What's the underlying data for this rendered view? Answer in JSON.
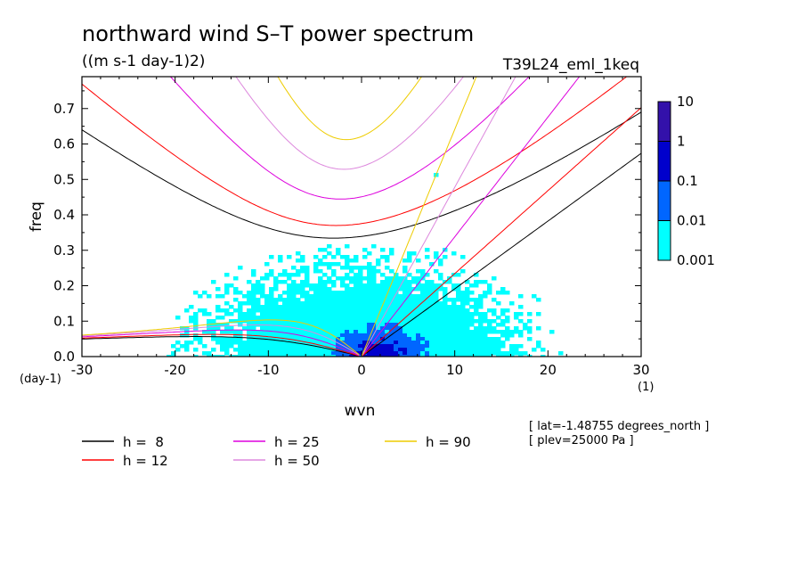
{
  "chart_data": {
    "type": "heatmap",
    "title": "northward wind S–T power spectrum",
    "subtitle": "((m s-1 day-1)2)",
    "experiment": "T39L24_eml_1keq",
    "xlabel": "wvn",
    "ylabel": "freq",
    "x_unit": "(1)",
    "y_unit": "(day-1)",
    "xlim": [
      -30,
      30
    ],
    "ylim": [
      0,
      0.79
    ],
    "x_ticks": [
      "-30",
      "-20",
      "-10",
      "0",
      "10",
      "20",
      "30"
    ],
    "x_tick_values": [
      -30,
      -20,
      -10,
      0,
      10,
      20,
      30
    ],
    "y_ticks": [
      "0.0",
      "0.1",
      "0.2",
      "0.3",
      "0.4",
      "0.5",
      "0.6",
      "0.7"
    ],
    "y_tick_values": [
      0,
      0.1,
      0.2,
      0.3,
      0.4,
      0.5,
      0.6,
      0.7
    ],
    "colorbar": {
      "labels": [
        "0.001",
        "0.01",
        "0.1",
        "1",
        "10"
      ],
      "colors": [
        "#00ffff",
        "#0066ff",
        "#0000cc",
        "#3311aa"
      ]
    },
    "series": [
      {
        "name": "h =  8",
        "color": "#000000",
        "equivalent_depth": 8
      },
      {
        "name": "h = 12",
        "color": "#ff0000",
        "equivalent_depth": 12
      },
      {
        "name": "h = 25",
        "color": "#dd00dd",
        "equivalent_depth": 25
      },
      {
        "name": "h = 50",
        "color": "#dd88dd",
        "equivalent_depth": 50
      },
      {
        "name": "h = 90",
        "color": "#eecc00",
        "equivalent_depth": 90
      }
    ],
    "annotations": [
      "[ lat=-1.48755 degrees_north ]",
      "[ plev=25000 Pa ]"
    ]
  }
}
